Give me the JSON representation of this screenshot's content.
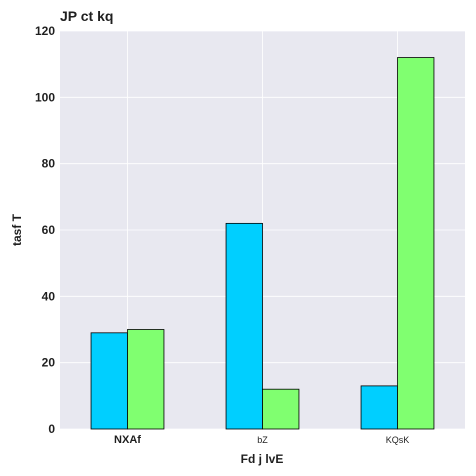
{
  "chart_data": {
    "type": "bar",
    "title": "JP ct kq",
    "xlabel": "Fd j lvE",
    "ylabel": "tasf T",
    "categories": [
      "NXAf",
      "bZ",
      "KQsK"
    ],
    "series": [
      {
        "values": [
          29,
          62,
          13
        ],
        "color": "#00cfff"
      },
      {
        "values": [
          30,
          12,
          112
        ],
        "color": "#80ff70"
      }
    ],
    "ylim": [
      0,
      120
    ],
    "yticks": [
      0,
      20,
      40,
      60,
      80,
      100,
      120
    ],
    "grid": true,
    "background": "#e8e8f0",
    "legend": "none"
  }
}
